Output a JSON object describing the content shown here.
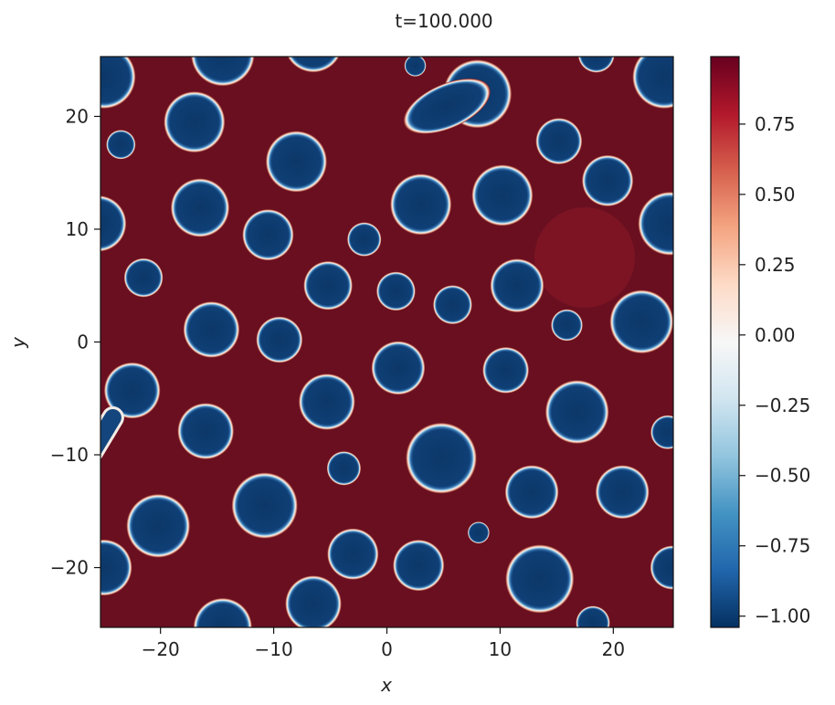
{
  "chart_data": {
    "type": "heatmap",
    "title": "t=100.000",
    "xlabel": "x",
    "ylabel": "y",
    "xlim": [
      -25.3,
      25.3
    ],
    "ylim": [
      -25.3,
      25.3
    ],
    "xticks": [
      -20,
      -10,
      0,
      10,
      20
    ],
    "yticks": [
      -20,
      -10,
      0,
      10,
      20
    ],
    "x_tick_labels": [
      "−20",
      "−10",
      "0",
      "10",
      "20"
    ],
    "y_tick_labels": [
      "−20",
      "−10",
      "0",
      "10",
      "20"
    ],
    "grid": false,
    "colormap": "RdBu_r",
    "background_value": 0.97,
    "droplet_value": -1.0,
    "colorbar": {
      "range": [
        -1.04,
        0.99
      ],
      "ticks": [
        -1.0,
        -0.75,
        -0.5,
        -0.25,
        0.0,
        0.25,
        0.5,
        0.75
      ],
      "tick_labels": [
        "−1.00",
        "−0.75",
        "−0.50",
        "−0.25",
        "0.00",
        "0.25",
        "0.50",
        "0.75"
      ],
      "colors": [
        "#053061",
        "#2166ac",
        "#4393c3",
        "#92c5de",
        "#d1e5f0",
        "#f7f7f7",
        "#fddbc7",
        "#f4a582",
        "#d6604d",
        "#b2182b",
        "#67001f"
      ]
    },
    "droplets": [
      [
        -25,
        23.5,
        2.6
      ],
      [
        -14.5,
        25.5,
        2.6
      ],
      [
        -6.5,
        26.5,
        2.4
      ],
      [
        2.5,
        24.5,
        0.9
      ],
      [
        8,
        22,
        2.8
      ],
      [
        18.5,
        25.5,
        1.5
      ],
      [
        24.5,
        23.5,
        2.6
      ],
      [
        -17,
        19.5,
        2.5
      ],
      [
        -23.5,
        17.5,
        1.2
      ],
      [
        -8,
        16,
        2.5
      ],
      [
        15.2,
        17.8,
        1.9
      ],
      [
        19.5,
        14.3,
        2.1
      ],
      [
        -16.5,
        11.9,
        2.4
      ],
      [
        -25.5,
        10.5,
        2.3
      ],
      [
        -10.5,
        9.5,
        2.1
      ],
      [
        -2,
        9.1,
        1.4
      ],
      [
        3,
        12.2,
        2.5
      ],
      [
        10.2,
        13,
        2.5
      ],
      [
        25,
        10.5,
        2.6
      ],
      [
        -21.5,
        5.7,
        1.6
      ],
      [
        -5.2,
        5,
        2
      ],
      [
        0.8,
        4.5,
        1.6
      ],
      [
        5.8,
        3.3,
        1.6
      ],
      [
        11.5,
        5,
        2.2
      ],
      [
        15.9,
        1.5,
        1.3
      ],
      [
        22.5,
        1.8,
        2.6
      ],
      [
        -15.5,
        1.1,
        2.3
      ],
      [
        -9.5,
        0.2,
        1.9
      ],
      [
        1,
        -2.3,
        2.2
      ],
      [
        10.5,
        -2.5,
        1.9
      ],
      [
        -5.3,
        -5.3,
        2.3
      ],
      [
        16.8,
        -6.2,
        2.6
      ],
      [
        -16,
        -7.9,
        2.3
      ],
      [
        -22.5,
        -4.3,
        2.3
      ],
      [
        24.8,
        -8,
        1.4
      ],
      [
        4.8,
        -10.3,
        2.9
      ],
      [
        -3.8,
        -11.2,
        1.4
      ],
      [
        -10.8,
        -14.5,
        2.7
      ],
      [
        12.8,
        -13.3,
        2.2
      ],
      [
        20.8,
        -13.3,
        2.2
      ],
      [
        -20.2,
        -16.3,
        2.6
      ],
      [
        8.1,
        -16.9,
        0.9
      ],
      [
        -3,
        -18.8,
        2.1
      ],
      [
        2.8,
        -19.8,
        2.1
      ],
      [
        -25,
        -20,
        2.3
      ],
      [
        13.5,
        -21,
        2.8
      ],
      [
        25.2,
        -20,
        1.8
      ],
      [
        -6.5,
        -23.2,
        2.3
      ],
      [
        -14.5,
        -25.3,
        2.4
      ],
      [
        18.2,
        -24.9,
        1.4
      ]
    ],
    "elongated_droplets": [
      [
        3.9,
        0.5,
        22.1,
        19.7
      ]
    ],
    "bridges": [
      [
        -24.2,
        -6.7,
        0.75,
        -26,
        -9.7,
        0.55
      ]
    ]
  }
}
